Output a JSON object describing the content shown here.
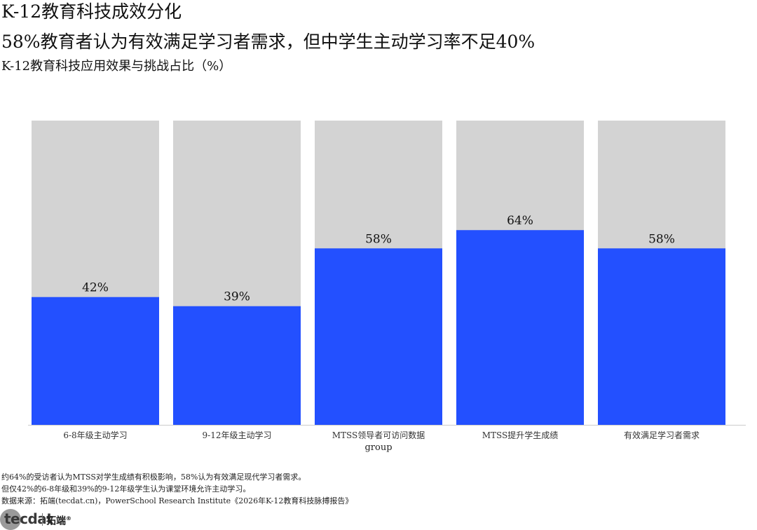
{
  "header": {
    "title": "K-12教育科技成效分化",
    "subtitle": "58%教育者认为有效满足学习者需求，但中学生主动学习率不足40%",
    "caption": "K-12教育科技应用效果与挑战占比（%）"
  },
  "chart_data": {
    "type": "bar",
    "stacked_background_max": 100,
    "categories": [
      "6-8年级主动学习",
      "9-12年级主动学习",
      "MTSS领导者可访问数据",
      "MTSS提升学生成绩",
      "有效满足学习者需求"
    ],
    "values": [
      42,
      39,
      58,
      64,
      58
    ],
    "data_labels": [
      "42%",
      "39%",
      "58%",
      "64%",
      "58%"
    ],
    "xlabel": "group",
    "ylabel": "",
    "ylim": [
      0,
      100
    ],
    "grid": false,
    "legend": "none",
    "colors": {
      "bar": "#2350ff",
      "background": "#d3d3d3",
      "axis": "#cccccc"
    }
  },
  "notes": [
    "约64%的受访者认为MTSS对学生成绩有积极影响，58%认为有效满足现代学习者需求。",
    "但仅42%的6-8年级和39%的9-12年级学生认为课堂环境允许主动学习。",
    "数据来源：拓端(tecdat.cn)，PowerSchool Research Institute《2026年K-12教育科技脉搏报告》"
  ],
  "logo": {
    "text": "tecdat",
    "cn": "拓端",
    "mark": "®"
  }
}
